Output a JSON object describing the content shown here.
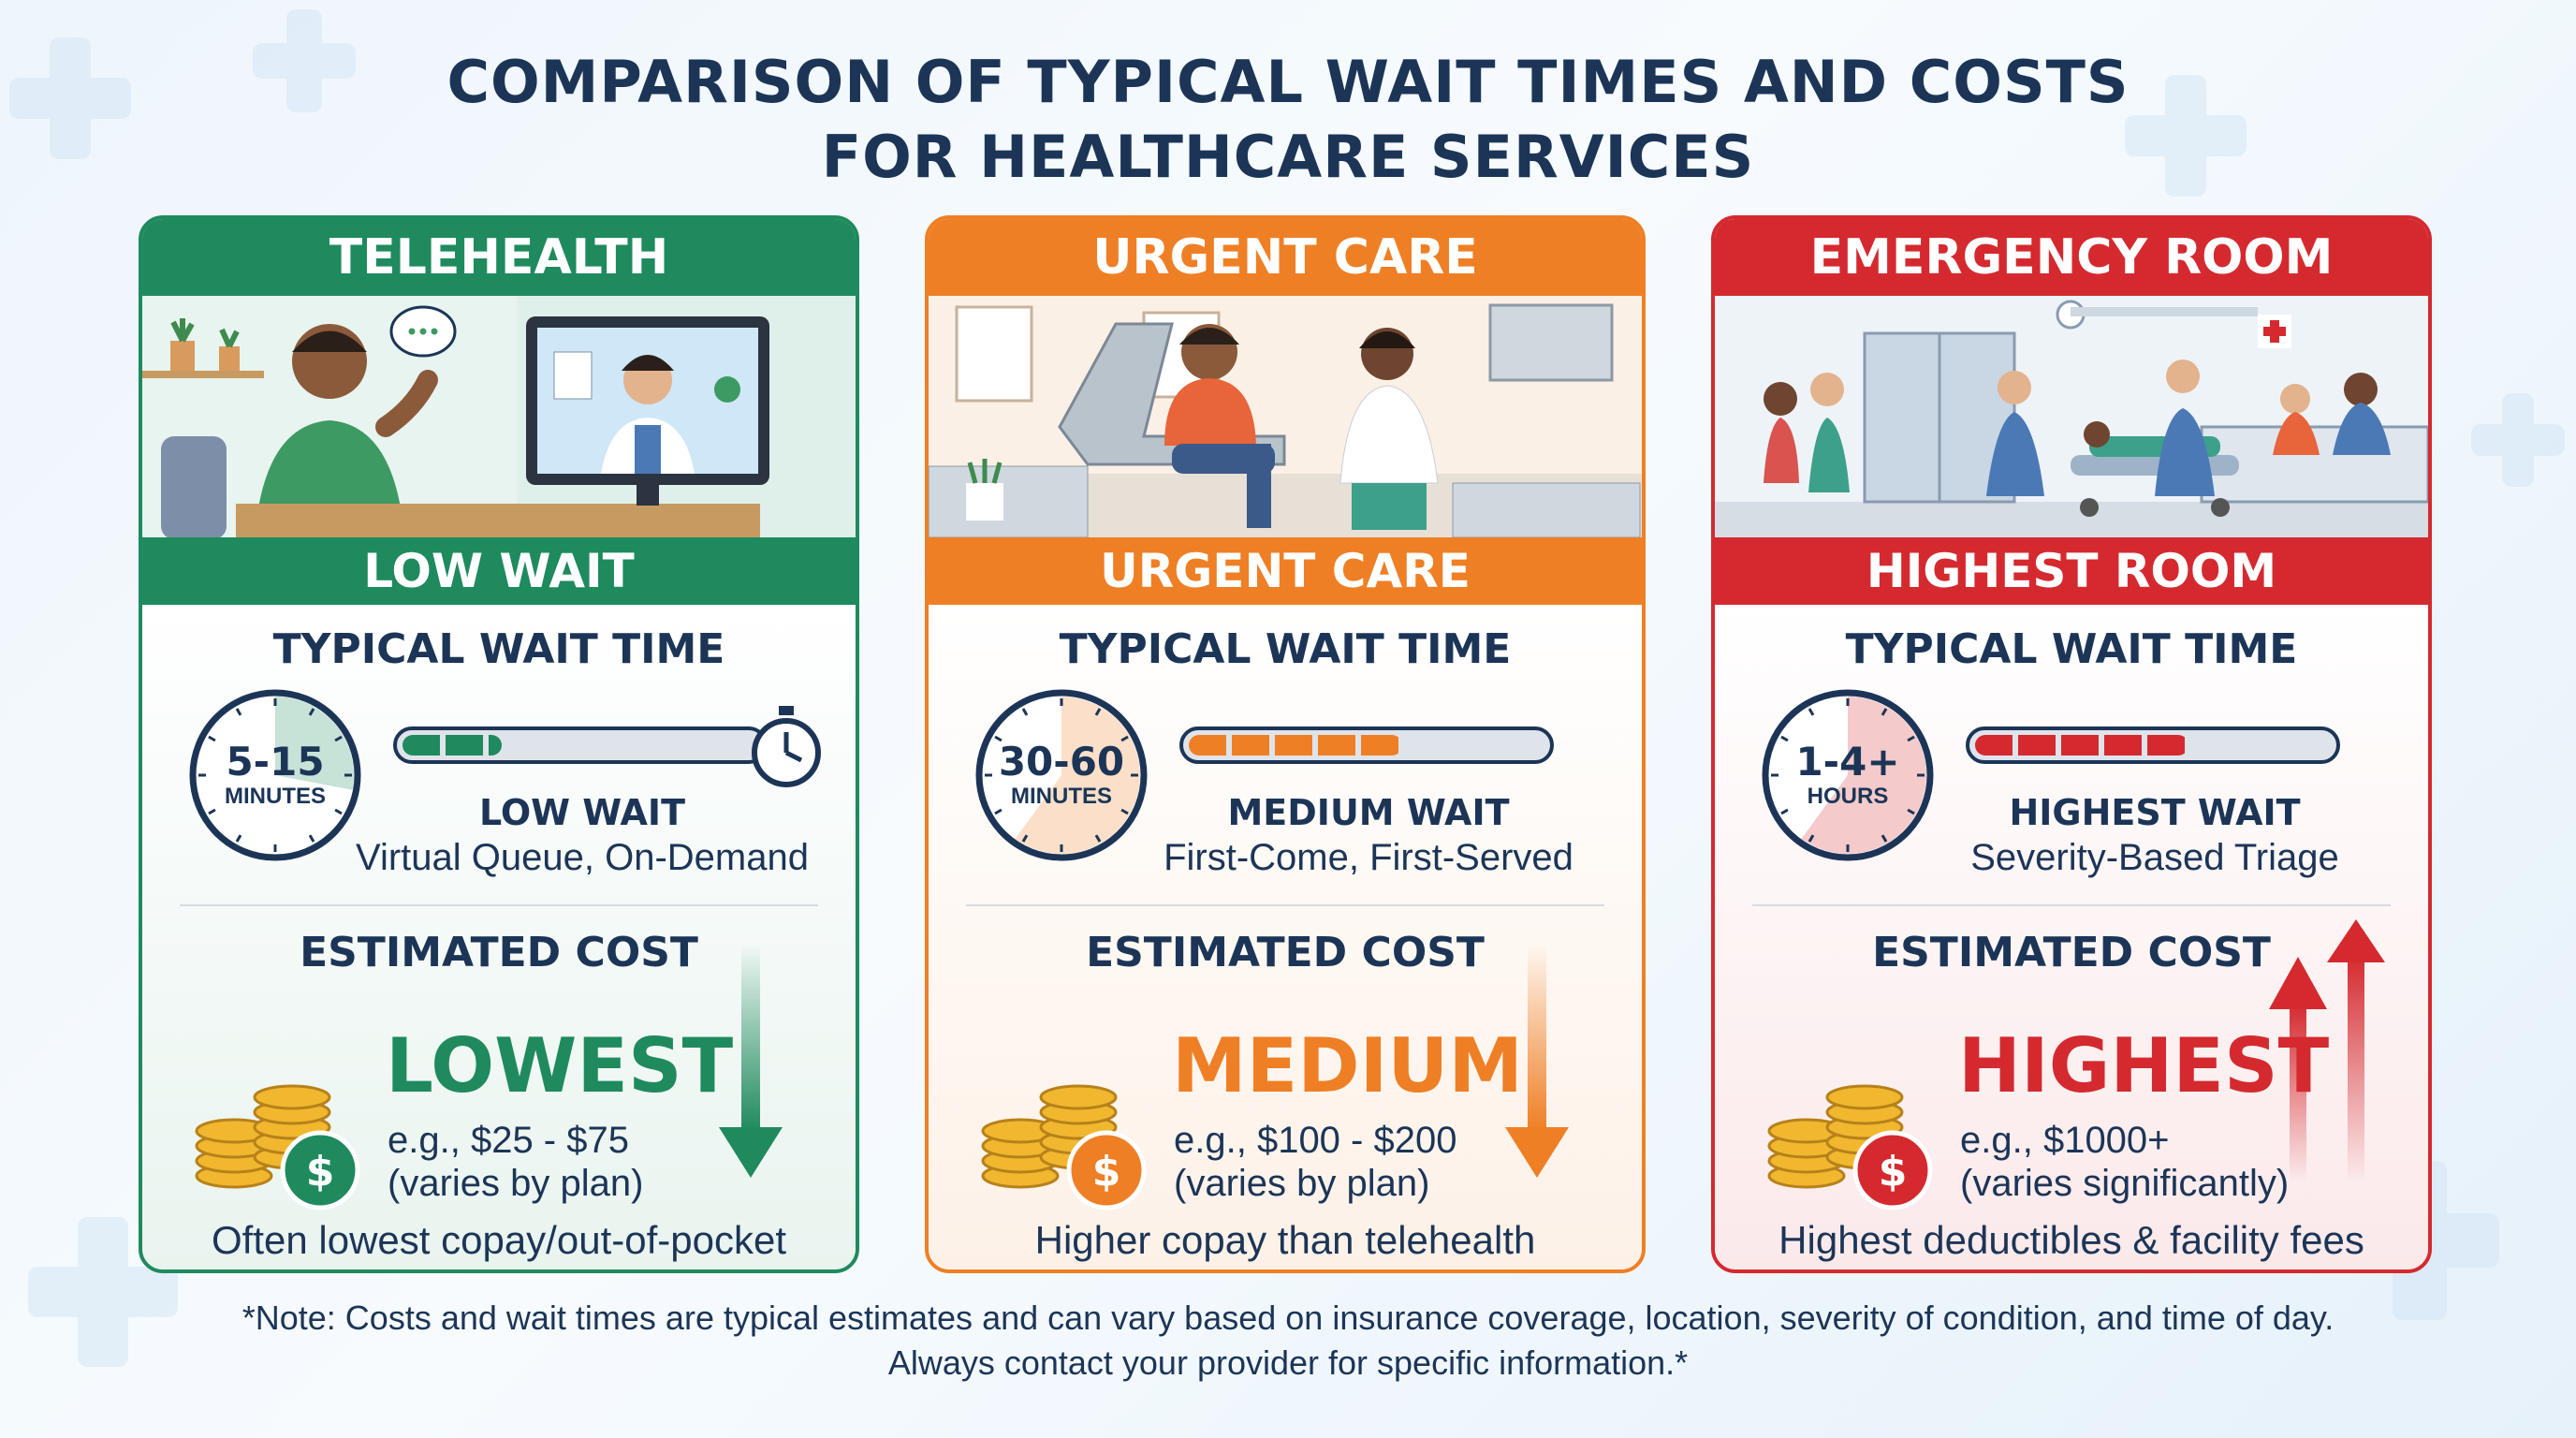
{
  "title_line1": "COMPARISON OF TYPICAL WAIT TIMES AND COSTS",
  "title_line2": "FOR HEALTHCARE SERVICES",
  "cards": [
    {
      "header": "TELEHEALTH",
      "band": "LOW WAIT",
      "wait_title": "TYPICAL WAIT TIME",
      "clock_value": "5-15",
      "clock_unit": "MINUTES",
      "wait_level": "LOW WAIT",
      "wait_desc": "Virtual Queue, On-Demand",
      "wait_fill_fraction": 0.28,
      "cost_title": "ESTIMATED COST",
      "cost_level": "LOWEST",
      "cost_range": "e.g., $25 - $75",
      "cost_note": "(varies by plan)",
      "footer": "Often lowest copay/out-of-pocket",
      "coin_symbol": "$",
      "color": "#1f8a5e",
      "light": "#e9f4ef",
      "trend": "down",
      "scene_icon": "telehealth-video-call-scene"
    },
    {
      "header": "URGENT CARE",
      "band": "URGENT CARE",
      "wait_title": "TYPICAL WAIT TIME",
      "clock_value": "30-60",
      "clock_unit": "MINUTES",
      "wait_level": "MEDIUM WAIT",
      "wait_desc": "First-Come, First-Served",
      "wait_fill_fraction": 0.6,
      "cost_title": "ESTIMATED COST",
      "cost_level": "MEDIUM",
      "cost_range": "e.g., $100 - $200",
      "cost_note": "(varies by plan)",
      "footer": "Higher copay than telehealth",
      "coin_symbol": "$",
      "color": "#ef7f25",
      "light": "#fdf1e7",
      "trend": "down",
      "scene_icon": "urgent-care-exam-room-scene"
    },
    {
      "header": "EMERGENCY ROOM",
      "band": "HIGHEST ROOM",
      "wait_title": "TYPICAL WAIT TIME",
      "clock_value": "1-4+",
      "clock_unit": "HOURS",
      "wait_level": "HIGHEST WAIT",
      "wait_desc": "Severity-Based Triage",
      "wait_fill_fraction": 0.6,
      "cost_title": "ESTIMATED COST",
      "cost_level": "HIGHEST",
      "cost_range": "e.g., $1000+",
      "cost_note": "(varies significantly)",
      "footer": "Highest deductibles & facility fees",
      "coin_symbol": "$",
      "color": "#d42a2f",
      "light": "#fbe9ea",
      "trend": "up",
      "scene_icon": "emergency-room-stretcher-scene"
    }
  ],
  "footnote_line1": "*Note: Costs and wait times are typical estimates and can vary based on insurance coverage, location, severity of condition, and time of day.",
  "footnote_line2": "Always contact your provider for specific information.*"
}
